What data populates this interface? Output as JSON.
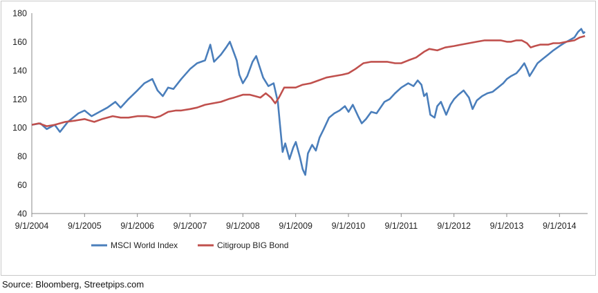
{
  "source": "Source: Bloomberg, Streetpips.com",
  "chart_data": {
    "type": "line",
    "title": "",
    "xlabel": "",
    "ylabel": "",
    "ylim": [
      40,
      180
    ],
    "yticks": [
      "40",
      "60",
      "80",
      "100",
      "120",
      "140",
      "160",
      "180"
    ],
    "xlim": [
      2004.667,
      2015.2
    ],
    "xticks": [
      {
        "label": "9/1/2004",
        "x": 2004.667
      },
      {
        "label": "9/1/2005",
        "x": 2005.667
      },
      {
        "label": "9/1/2006",
        "x": 2006.667
      },
      {
        "label": "9/1/2007",
        "x": 2007.667
      },
      {
        "label": "9/1/2008",
        "x": 2008.667
      },
      {
        "label": "9/1/2009",
        "x": 2009.667
      },
      {
        "label": "9/1/2010",
        "x": 2010.667
      },
      {
        "label": "9/1/2011",
        "x": 2011.667
      },
      {
        "label": "9/1/2012",
        "x": 2012.667
      },
      {
        "label": "9/1/2013",
        "x": 2013.667
      },
      {
        "label": "9/1/2014",
        "x": 2014.667
      }
    ],
    "grid": false,
    "legend": "bottom-center",
    "series": [
      {
        "name": "MSCI World Index",
        "color": "#4a7ebb",
        "points": [
          [
            2004.667,
            102
          ],
          [
            2004.83,
            103
          ],
          [
            2004.95,
            99
          ],
          [
            2005.1,
            102
          ],
          [
            2005.2,
            97
          ],
          [
            2005.35,
            104
          ],
          [
            2005.55,
            110
          ],
          [
            2005.667,
            112
          ],
          [
            2005.8,
            108
          ],
          [
            2005.95,
            111
          ],
          [
            2006.1,
            114
          ],
          [
            2006.25,
            118
          ],
          [
            2006.35,
            114
          ],
          [
            2006.5,
            120
          ],
          [
            2006.667,
            126
          ],
          [
            2006.8,
            131
          ],
          [
            2006.95,
            134
          ],
          [
            2007.05,
            126
          ],
          [
            2007.15,
            122
          ],
          [
            2007.25,
            128
          ],
          [
            2007.35,
            127
          ],
          [
            2007.5,
            134
          ],
          [
            2007.667,
            141
          ],
          [
            2007.8,
            145
          ],
          [
            2007.95,
            147
          ],
          [
            2008.05,
            158
          ],
          [
            2008.12,
            146
          ],
          [
            2008.25,
            151
          ],
          [
            2008.35,
            156
          ],
          [
            2008.42,
            160
          ],
          [
            2008.5,
            152
          ],
          [
            2008.55,
            147
          ],
          [
            2008.6,
            137
          ],
          [
            2008.667,
            131
          ],
          [
            2008.75,
            136
          ],
          [
            2008.85,
            146
          ],
          [
            2008.92,
            150
          ],
          [
            2008.98,
            143
          ],
          [
            2009.05,
            135
          ],
          [
            2009.15,
            129
          ],
          [
            2009.25,
            131
          ],
          [
            2009.33,
            118
          ],
          [
            2009.37,
            102
          ],
          [
            2009.42,
            83
          ],
          [
            2009.47,
            89
          ],
          [
            2009.55,
            78
          ],
          [
            2009.62,
            86
          ],
          [
            2009.67,
            90
          ],
          [
            2009.75,
            79
          ],
          [
            2009.8,
            71
          ],
          [
            2009.85,
            67
          ],
          [
            2009.9,
            82
          ],
          [
            2009.98,
            88
          ],
          [
            2010.05,
            84
          ],
          [
            2010.12,
            93
          ],
          [
            2010.2,
            99
          ],
          [
            2010.3,
            107
          ],
          [
            2010.4,
            110
          ],
          [
            2010.5,
            112
          ],
          [
            2010.6,
            115
          ],
          [
            2010.67,
            111
          ],
          [
            2010.75,
            116
          ],
          [
            2010.85,
            108
          ],
          [
            2010.92,
            103
          ],
          [
            2011.0,
            106
          ],
          [
            2011.1,
            111
          ],
          [
            2011.2,
            110
          ],
          [
            2011.35,
            118
          ],
          [
            2011.45,
            120
          ],
          [
            2011.55,
            124
          ],
          [
            2011.67,
            128
          ],
          [
            2011.8,
            131
          ],
          [
            2011.9,
            129
          ],
          [
            2011.98,
            133
          ],
          [
            2012.05,
            130
          ],
          [
            2012.1,
            122
          ],
          [
            2012.15,
            124
          ],
          [
            2012.22,
            109
          ],
          [
            2012.3,
            107
          ],
          [
            2012.35,
            115
          ],
          [
            2012.42,
            118
          ],
          [
            2012.52,
            109
          ],
          [
            2012.6,
            116
          ],
          [
            2012.67,
            120
          ],
          [
            2012.75,
            123
          ],
          [
            2012.85,
            126
          ],
          [
            2012.95,
            121
          ],
          [
            2013.02,
            113
          ],
          [
            2013.1,
            119
          ],
          [
            2013.2,
            122
          ],
          [
            2013.3,
            124
          ],
          [
            2013.4,
            125
          ],
          [
            2013.5,
            128
          ],
          [
            2013.6,
            131
          ],
          [
            2013.67,
            134
          ],
          [
            2013.75,
            136
          ],
          [
            2013.85,
            138
          ],
          [
            2013.92,
            141
          ],
          [
            2014.0,
            145
          ],
          [
            2014.05,
            141
          ],
          [
            2014.1,
            136
          ],
          [
            2014.15,
            139
          ],
          [
            2014.25,
            145
          ],
          [
            2014.35,
            148
          ],
          [
            2014.45,
            151
          ],
          [
            2014.55,
            154
          ],
          [
            2014.67,
            157
          ],
          [
            2014.75,
            159
          ],
          [
            2014.85,
            161
          ],
          [
            2014.95,
            163
          ],
          [
            2015.02,
            167
          ],
          [
            2015.08,
            169
          ],
          [
            2015.12,
            166
          ],
          [
            2015.15,
            167
          ]
        ]
      },
      {
        "name": "Citigroup BIG Bond",
        "color": "#c0504d",
        "points": [
          [
            2004.667,
            102
          ],
          [
            2004.8,
            103
          ],
          [
            2004.95,
            101
          ],
          [
            2005.1,
            102
          ],
          [
            2005.3,
            104
          ],
          [
            2005.5,
            105
          ],
          [
            2005.667,
            106
          ],
          [
            2005.85,
            104
          ],
          [
            2006.0,
            106
          ],
          [
            2006.2,
            108
          ],
          [
            2006.35,
            107
          ],
          [
            2006.5,
            107
          ],
          [
            2006.667,
            108
          ],
          [
            2006.85,
            108
          ],
          [
            2007.0,
            107
          ],
          [
            2007.1,
            108
          ],
          [
            2007.25,
            111
          ],
          [
            2007.4,
            112
          ],
          [
            2007.5,
            112
          ],
          [
            2007.667,
            113
          ],
          [
            2007.8,
            114
          ],
          [
            2007.95,
            116
          ],
          [
            2008.1,
            117
          ],
          [
            2008.25,
            118
          ],
          [
            2008.4,
            120
          ],
          [
            2008.5,
            121
          ],
          [
            2008.667,
            123
          ],
          [
            2008.8,
            123
          ],
          [
            2008.9,
            122
          ],
          [
            2009.0,
            121
          ],
          [
            2009.1,
            124
          ],
          [
            2009.2,
            121
          ],
          [
            2009.28,
            117
          ],
          [
            2009.35,
            121
          ],
          [
            2009.45,
            128
          ],
          [
            2009.55,
            128
          ],
          [
            2009.667,
            128
          ],
          [
            2009.8,
            130
          ],
          [
            2009.95,
            131
          ],
          [
            2010.1,
            133
          ],
          [
            2010.25,
            135
          ],
          [
            2010.4,
            136
          ],
          [
            2010.55,
            137
          ],
          [
            2010.667,
            138
          ],
          [
            2010.8,
            141
          ],
          [
            2010.95,
            145
          ],
          [
            2011.1,
            146
          ],
          [
            2011.25,
            146
          ],
          [
            2011.4,
            146
          ],
          [
            2011.55,
            145
          ],
          [
            2011.667,
            145
          ],
          [
            2011.8,
            147
          ],
          [
            2011.95,
            149
          ],
          [
            2012.1,
            153
          ],
          [
            2012.2,
            155
          ],
          [
            2012.35,
            154
          ],
          [
            2012.5,
            156
          ],
          [
            2012.667,
            157
          ],
          [
            2012.8,
            158
          ],
          [
            2012.95,
            159
          ],
          [
            2013.1,
            160
          ],
          [
            2013.25,
            161
          ],
          [
            2013.4,
            161
          ],
          [
            2013.55,
            161
          ],
          [
            2013.667,
            160
          ],
          [
            2013.75,
            160
          ],
          [
            2013.85,
            161
          ],
          [
            2013.95,
            161
          ],
          [
            2014.05,
            159
          ],
          [
            2014.12,
            156
          ],
          [
            2014.2,
            157
          ],
          [
            2014.3,
            158
          ],
          [
            2014.45,
            158
          ],
          [
            2014.55,
            159
          ],
          [
            2014.667,
            159
          ],
          [
            2014.8,
            160
          ],
          [
            2014.95,
            161
          ],
          [
            2015.05,
            163
          ],
          [
            2015.15,
            164
          ]
        ]
      }
    ]
  }
}
